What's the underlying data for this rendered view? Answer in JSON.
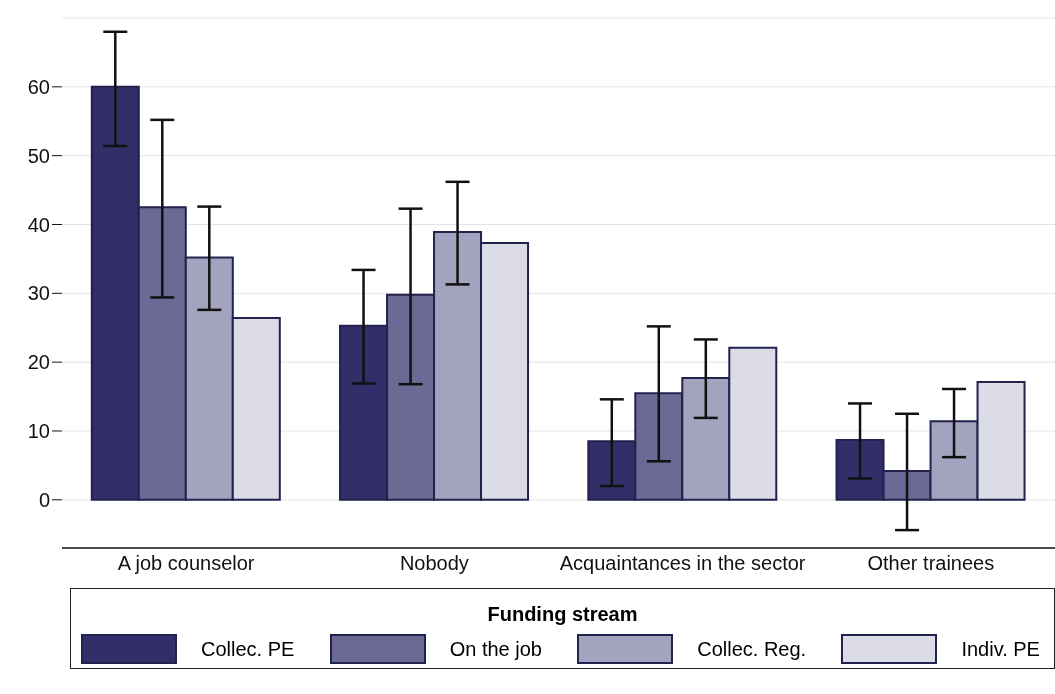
{
  "chart_data": {
    "type": "bar",
    "categories": [
      "A job counselor",
      "Nobody",
      "Acquaintances in the sector",
      "Other trainees"
    ],
    "series": [
      {
        "name": "Collec. PE",
        "color": "#312e69",
        "values": [
          60,
          25.3,
          8.5,
          8.7
        ],
        "errors": [
          [
            51.4,
            68.0
          ],
          [
            16.9,
            33.4
          ],
          [
            2.0,
            14.6
          ],
          [
            3.1,
            14.0
          ]
        ]
      },
      {
        "name": "On the job",
        "color": "#6b6a94",
        "values": [
          42.5,
          29.8,
          15.5,
          4.2
        ],
        "errors": [
          [
            29.4,
            55.2
          ],
          [
            16.8,
            42.3
          ],
          [
            5.6,
            25.2
          ],
          [
            -4.4,
            12.5
          ]
        ]
      },
      {
        "name": "Collec. Reg.",
        "color": "#a3a3c0",
        "values": [
          35.2,
          38.9,
          17.7,
          11.4
        ],
        "errors": [
          [
            27.6,
            42.6
          ],
          [
            31.3,
            46.2
          ],
          [
            11.9,
            23.3
          ],
          [
            6.2,
            16.1
          ]
        ]
      },
      {
        "name": "Indiv. PE",
        "color": "#dcdce6",
        "values": [
          26.4,
          37.3,
          22.1,
          17.1
        ]
      }
    ],
    "ylim": [
      -7,
      70
    ],
    "yticks": [
      0,
      10,
      20,
      30,
      40,
      50,
      60
    ],
    "grid": "y",
    "legend": "bottom",
    "legend_title": "Funding stream"
  }
}
